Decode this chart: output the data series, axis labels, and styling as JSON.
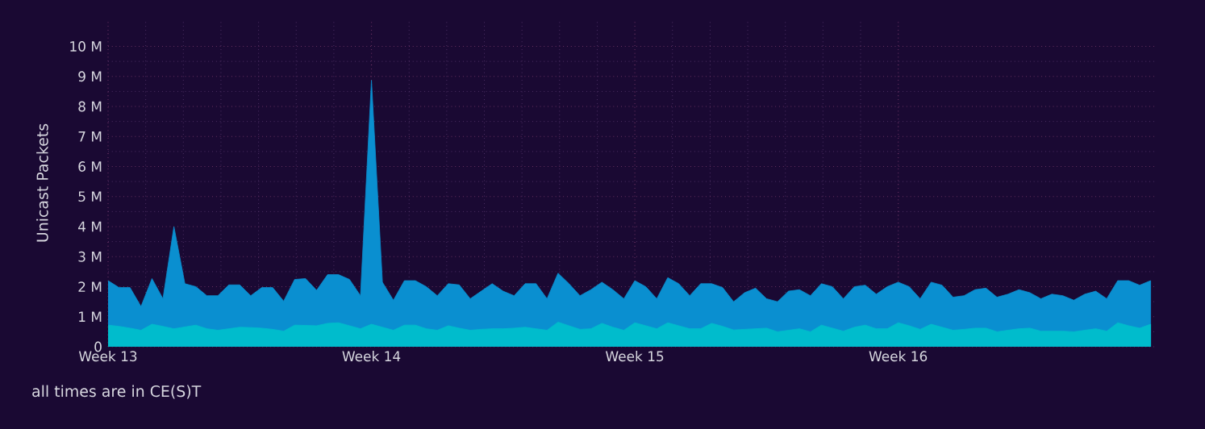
{
  "chart_data": {
    "type": "area",
    "ylabel": "Unicast Packets",
    "annotations": [
      "all times are in CE(S)T"
    ],
    "categories": [
      "Week 13",
      null,
      null,
      null,
      null,
      null,
      null,
      null,
      null,
      null,
      null,
      null,
      null,
      null,
      null,
      null,
      null,
      null,
      null,
      null,
      null,
      null,
      null,
      null,
      "Week 14",
      null,
      null,
      null,
      null,
      null,
      null,
      null,
      null,
      null,
      null,
      null,
      null,
      null,
      null,
      null,
      null,
      null,
      null,
      null,
      null,
      null,
      null,
      null,
      "Week 15",
      null,
      null,
      null,
      null,
      null,
      null,
      null,
      null,
      null,
      null,
      null,
      null,
      null,
      null,
      null,
      null,
      null,
      null,
      null,
      null,
      null,
      null,
      null,
      "Week 16",
      null,
      null,
      null,
      null,
      null,
      null,
      null,
      null,
      null,
      null,
      null,
      null,
      null,
      null,
      null,
      null,
      null,
      null,
      null,
      null,
      null,
      null,
      null
    ],
    "ylim": [
      0,
      10.9
    ],
    "yticks": [
      0,
      {
        "value": 1,
        "label": "1 M"
      },
      {
        "value": 2,
        "label": "2 M"
      },
      {
        "value": 3,
        "label": "3 M"
      },
      {
        "value": 4,
        "label": "4 M"
      },
      {
        "value": 5,
        "label": "5 M"
      },
      {
        "value": 6,
        "label": "6 M"
      },
      {
        "value": 7,
        "label": "7 M"
      },
      {
        "value": 8,
        "label": "8 M"
      },
      {
        "value": 9,
        "label": "9 M"
      },
      {
        "value": 10,
        "label": "10 M"
      }
    ],
    "grid": true,
    "series": [
      {
        "color": "#0a8fd0",
        "values": [
          2.2,
          1.97,
          1.97,
          1.34,
          2.27,
          1.6,
          4.0,
          2.1,
          2.0,
          1.7,
          1.7,
          2.06,
          2.06,
          1.7,
          1.97,
          1.97,
          1.52,
          2.24,
          2.27,
          1.88,
          2.4,
          2.4,
          2.24,
          1.7,
          8.87,
          2.15,
          1.55,
          2.2,
          2.2,
          2.0,
          1.7,
          2.1,
          2.06,
          1.6,
          1.85,
          2.1,
          1.85,
          1.7,
          2.1,
          2.1,
          1.6,
          2.45,
          2.1,
          1.7,
          1.9,
          2.15,
          1.9,
          1.6,
          2.2,
          2.0,
          1.6,
          2.3,
          2.1,
          1.7,
          2.1,
          2.1,
          1.97,
          1.5,
          1.8,
          1.95,
          1.6,
          1.5,
          1.85,
          1.9,
          1.7,
          2.1,
          2.0,
          1.6,
          2.0,
          2.05,
          1.75,
          2.0,
          2.15,
          2.0,
          1.6,
          2.15,
          2.05,
          1.65,
          1.7,
          1.9,
          1.95,
          1.65,
          1.75,
          1.9,
          1.8,
          1.6,
          1.75,
          1.7,
          1.55,
          1.75,
          1.85,
          1.6,
          2.2,
          2.2,
          2.05,
          2.2
        ]
      },
      {
        "color": "#00bccc",
        "values": [
          0.72,
          0.68,
          0.62,
          0.55,
          0.75,
          0.68,
          0.6,
          0.66,
          0.72,
          0.6,
          0.55,
          0.6,
          0.65,
          0.64,
          0.62,
          0.58,
          0.52,
          0.72,
          0.71,
          0.7,
          0.78,
          0.8,
          0.7,
          0.6,
          0.75,
          0.65,
          0.55,
          0.72,
          0.72,
          0.6,
          0.55,
          0.7,
          0.62,
          0.55,
          0.58,
          0.6,
          0.6,
          0.62,
          0.65,
          0.6,
          0.55,
          0.82,
          0.7,
          0.58,
          0.6,
          0.78,
          0.65,
          0.55,
          0.8,
          0.7,
          0.6,
          0.8,
          0.7,
          0.6,
          0.6,
          0.78,
          0.68,
          0.56,
          0.58,
          0.6,
          0.62,
          0.5,
          0.55,
          0.6,
          0.5,
          0.72,
          0.62,
          0.52,
          0.65,
          0.72,
          0.6,
          0.6,
          0.8,
          0.7,
          0.58,
          0.75,
          0.65,
          0.55,
          0.58,
          0.62,
          0.62,
          0.5,
          0.55,
          0.6,
          0.62,
          0.52,
          0.52,
          0.52,
          0.5,
          0.55,
          0.6,
          0.52,
          0.8,
          0.7,
          0.62,
          0.75
        ]
      }
    ]
  }
}
